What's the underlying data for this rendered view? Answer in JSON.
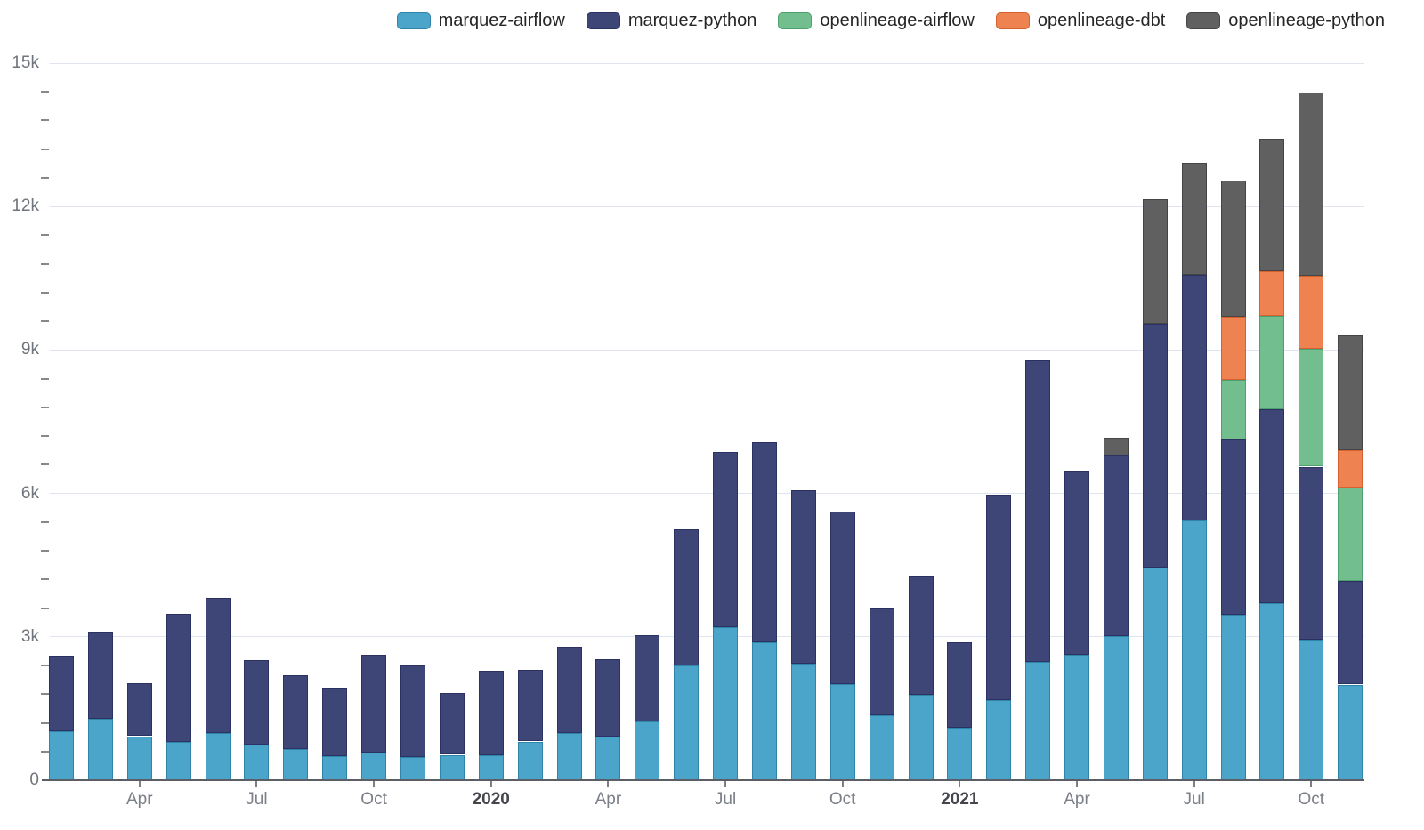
{
  "legend": {
    "items": [
      {
        "label": "marquez-airflow",
        "color": "#4BA4CA",
        "border": "#2F84A8"
      },
      {
        "label": "marquez-python",
        "color": "#3E4577",
        "border": "#2B3161"
      },
      {
        "label": "openlineage-airflow",
        "color": "#72BE8E",
        "border": "#4FA070"
      },
      {
        "label": "openlineage-dbt",
        "color": "#EE8351",
        "border": "#D4612F"
      },
      {
        "label": "openlineage-python",
        "color": "#606060",
        "border": "#454545"
      }
    ]
  },
  "y_axis": {
    "labels": [
      {
        "text": "15k",
        "value": 15000
      },
      {
        "text": "12k",
        "value": 12000
      },
      {
        "text": "9k",
        "value": 9000
      },
      {
        "text": "6k",
        "value": 6000
      },
      {
        "text": "3k",
        "value": 3000
      },
      {
        "text": "0",
        "value": 0
      }
    ],
    "minor_tick_every": 600
  },
  "x_axis": {
    "ticks": [
      {
        "label": "Apr",
        "month_index": 2,
        "bold": false
      },
      {
        "label": "Jul",
        "month_index": 5,
        "bold": false
      },
      {
        "label": "Oct",
        "month_index": 8,
        "bold": false
      },
      {
        "label": "2020",
        "month_index": 11,
        "bold": true
      },
      {
        "label": "Apr",
        "month_index": 14,
        "bold": false
      },
      {
        "label": "Jul",
        "month_index": 17,
        "bold": false
      },
      {
        "label": "Oct",
        "month_index": 20,
        "bold": false
      },
      {
        "label": "2021",
        "month_index": 23,
        "bold": true
      },
      {
        "label": "Apr",
        "month_index": 26,
        "bold": false
      },
      {
        "label": "Jul",
        "month_index": 29,
        "bold": false
      },
      {
        "label": "Oct",
        "month_index": 32,
        "bold": false
      }
    ]
  },
  "chart_data": {
    "type": "bar",
    "stacked": true,
    "title": "",
    "xlabel": "",
    "ylabel": "",
    "ylim": [
      0,
      15000
    ],
    "grid": true,
    "legend_position": "top-right",
    "x": [
      "2019-02",
      "2019-03",
      "2019-04",
      "2019-05",
      "2019-06",
      "2019-07",
      "2019-08",
      "2019-09",
      "2019-10",
      "2019-11",
      "2019-12",
      "2020-01",
      "2020-02",
      "2020-03",
      "2020-04",
      "2020-05",
      "2020-06",
      "2020-07",
      "2020-08",
      "2020-09",
      "2020-10",
      "2020-11",
      "2020-12",
      "2021-01",
      "2021-02",
      "2021-03",
      "2021-04",
      "2021-05",
      "2021-06",
      "2021-07",
      "2021-08",
      "2021-09",
      "2021-10",
      "2021-11"
    ],
    "series": [
      {
        "name": "marquez-airflow",
        "color": "#4BA4CA",
        "border": "#2F84A8",
        "values": [
          1030,
          1280,
          920,
          800,
          980,
          750,
          650,
          500,
          580,
          490,
          530,
          520,
          810,
          990,
          920,
          1230,
          2400,
          3210,
          2890,
          2430,
          2020,
          1360,
          1790,
          1100,
          1680,
          2470,
          2620,
          3010,
          4440,
          5430,
          3470,
          3710,
          2940,
          2000
        ]
      },
      {
        "name": "marquez-python",
        "color": "#3E4577",
        "border": "#2B3161",
        "values": [
          1580,
          1830,
          1110,
          2680,
          2830,
          1770,
          1550,
          1440,
          2040,
          1920,
          1290,
          1770,
          1500,
          1800,
          1620,
          1800,
          2840,
          3660,
          4190,
          3640,
          3610,
          2230,
          2480,
          1780,
          4290,
          6310,
          3830,
          3790,
          5110,
          5140,
          3660,
          4050,
          3620,
          2170
        ]
      },
      {
        "name": "openlineage-airflow",
        "color": "#72BE8E",
        "border": "#4FA070",
        "values": [
          0,
          0,
          0,
          0,
          0,
          0,
          0,
          0,
          0,
          0,
          0,
          0,
          0,
          0,
          0,
          0,
          0,
          0,
          0,
          0,
          0,
          0,
          0,
          0,
          0,
          0,
          0,
          0,
          0,
          0,
          1240,
          1960,
          2470,
          1950
        ]
      },
      {
        "name": "openlineage-dbt",
        "color": "#EE8351",
        "border": "#D4612F",
        "values": [
          0,
          0,
          0,
          0,
          0,
          0,
          0,
          0,
          0,
          0,
          0,
          0,
          0,
          0,
          0,
          0,
          0,
          0,
          0,
          0,
          0,
          0,
          0,
          0,
          0,
          0,
          0,
          0,
          0,
          0,
          1330,
          930,
          1520,
          780
        ]
      },
      {
        "name": "openlineage-python",
        "color": "#606060",
        "border": "#454545",
        "values": [
          0,
          0,
          0,
          0,
          0,
          0,
          0,
          0,
          0,
          0,
          0,
          0,
          0,
          0,
          0,
          0,
          0,
          0,
          0,
          0,
          0,
          0,
          0,
          0,
          0,
          0,
          0,
          360,
          2600,
          2340,
          2840,
          2770,
          3830,
          2410
        ]
      }
    ]
  }
}
